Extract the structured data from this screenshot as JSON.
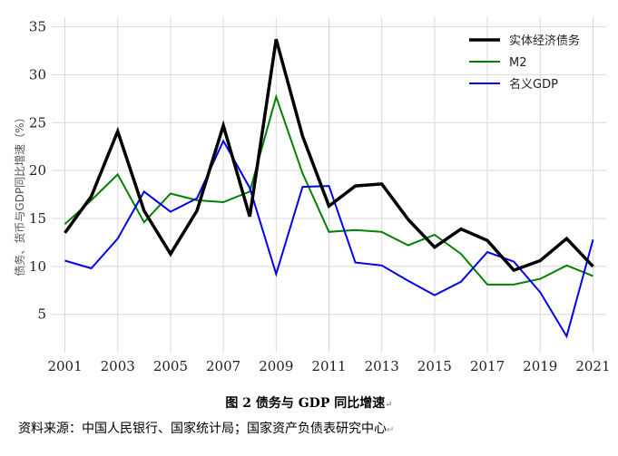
{
  "caption": "图 2 债务与 GDP 同比增速",
  "source": "资料来源：中国人民银行、国家统计局；国家资产负债表研究中心",
  "chart_data": {
    "type": "line",
    "title": "",
    "xlabel": "",
    "ylabel": "债务、货币与GDP同比增速（%）",
    "x": [
      2001,
      2002,
      2003,
      2004,
      2005,
      2006,
      2007,
      2008,
      2009,
      2010,
      2011,
      2012,
      2013,
      2014,
      2015,
      2016,
      2017,
      2018,
      2019,
      2020,
      2021
    ],
    "xticks": [
      "2001",
      "2003",
      "2005",
      "2007",
      "2009",
      "2011",
      "2013",
      "2015",
      "2017",
      "2019",
      "2021"
    ],
    "yticks": [
      "5",
      "10",
      "15",
      "20",
      "25",
      "30",
      "35"
    ],
    "xlim": [
      2000.5,
      2021.5
    ],
    "ylim": [
      1,
      36
    ],
    "grid": true,
    "legend": "top-right",
    "series": [
      {
        "name": "实体经济债务",
        "color": "#000000",
        "width": 3.5,
        "values": [
          13.5,
          17.3,
          24.1,
          15.8,
          11.3,
          15.8,
          24.7,
          15.2,
          33.7,
          23.6,
          16.3,
          18.4,
          18.6,
          14.9,
          12.0,
          13.9,
          12.7,
          9.6,
          10.6,
          12.9,
          10.0
        ]
      },
      {
        "name": "M2",
        "color": "#008000",
        "width": 2,
        "values": [
          14.4,
          16.9,
          19.6,
          14.6,
          17.6,
          16.9,
          16.7,
          17.8,
          27.7,
          19.7,
          13.6,
          13.8,
          13.6,
          12.2,
          13.3,
          11.3,
          8.1,
          8.1,
          8.7,
          10.1,
          9.0
        ]
      },
      {
        "name": "名义GDP",
        "color": "#0000ee",
        "width": 2,
        "values": [
          10.6,
          9.8,
          12.9,
          17.8,
          15.7,
          17.1,
          23.1,
          18.2,
          9.2,
          18.3,
          18.4,
          10.4,
          10.1,
          8.5,
          7.0,
          8.4,
          11.5,
          10.5,
          7.3,
          2.7,
          12.8
        ]
      }
    ]
  }
}
